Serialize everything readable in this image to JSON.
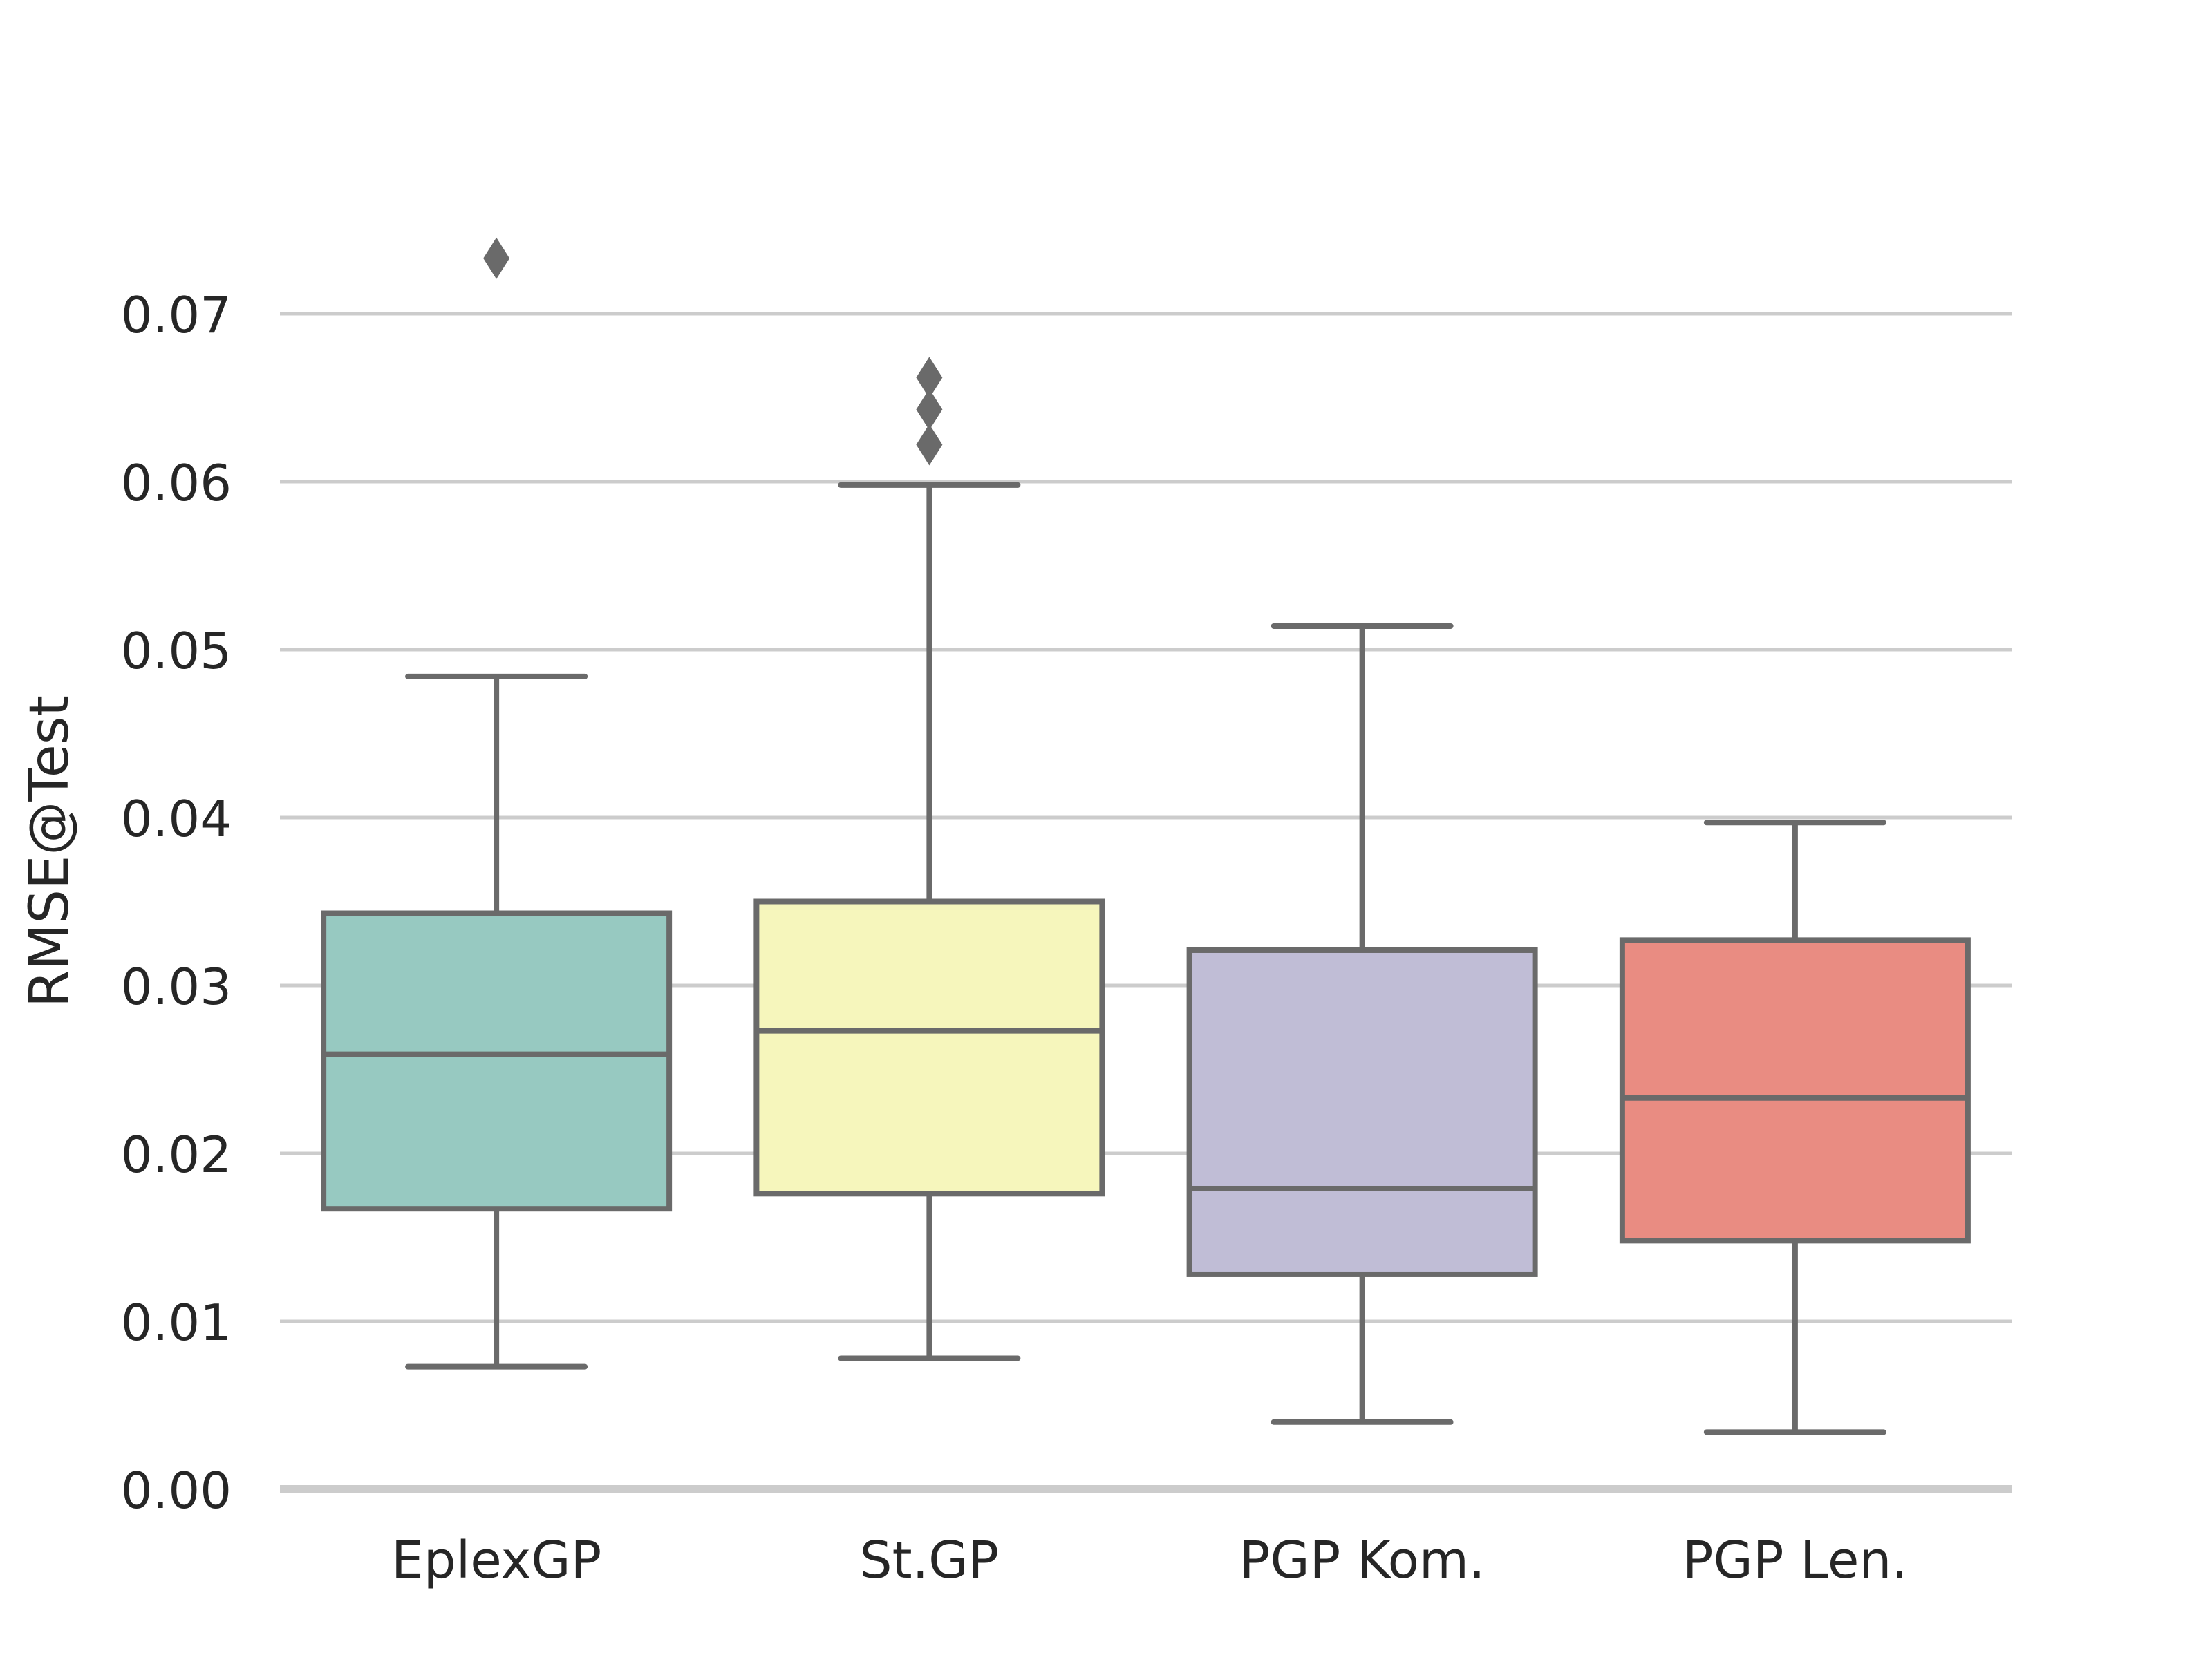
{
  "chart_data": {
    "type": "box",
    "title": "",
    "xlabel": "",
    "ylabel": "RMSE@Test",
    "ylim": [
      0.0,
      0.077
    ],
    "yticks": [
      0.0,
      0.01,
      0.02,
      0.03,
      0.04,
      0.05,
      0.06,
      0.07
    ],
    "ytick_labels": [
      "0.00",
      "0.01",
      "0.02",
      "0.03",
      "0.04",
      "0.05",
      "0.06",
      "0.07"
    ],
    "grid": "horizontal",
    "legend": "none",
    "categories": [
      "EplexGP",
      "St.GP",
      "PGP Kom.",
      "PGP Len."
    ],
    "boxes": [
      {
        "category": "EplexGP",
        "whisker_low": 0.0073,
        "q1": 0.0167,
        "median": 0.0259,
        "q3": 0.0343,
        "whisker_high": 0.0484,
        "outliers": [
          0.0733
        ],
        "color": "#97c9c1"
      },
      {
        "category": "St.GP",
        "whisker_low": 0.0078,
        "q1": 0.0176,
        "median": 0.0273,
        "q3": 0.035,
        "whisker_high": 0.0598,
        "outliers": [
          0.0622,
          0.0643,
          0.0662
        ],
        "color": "#f6f6bc"
      },
      {
        "category": "PGP Kom.",
        "whisker_low": 0.004,
        "q1": 0.0128,
        "median": 0.0179,
        "q3": 0.0321,
        "whisker_high": 0.0514,
        "outliers": [],
        "color": "#c0bdd6"
      },
      {
        "category": "PGP Len.",
        "whisker_low": 0.0034,
        "q1": 0.0148,
        "median": 0.0233,
        "q3": 0.0327,
        "whisker_high": 0.0397,
        "outliers": [],
        "color": "#e98c82"
      }
    ],
    "colors": {
      "edge": "#6a6a6a",
      "grid": "#cccccc",
      "text": "#262626"
    }
  }
}
